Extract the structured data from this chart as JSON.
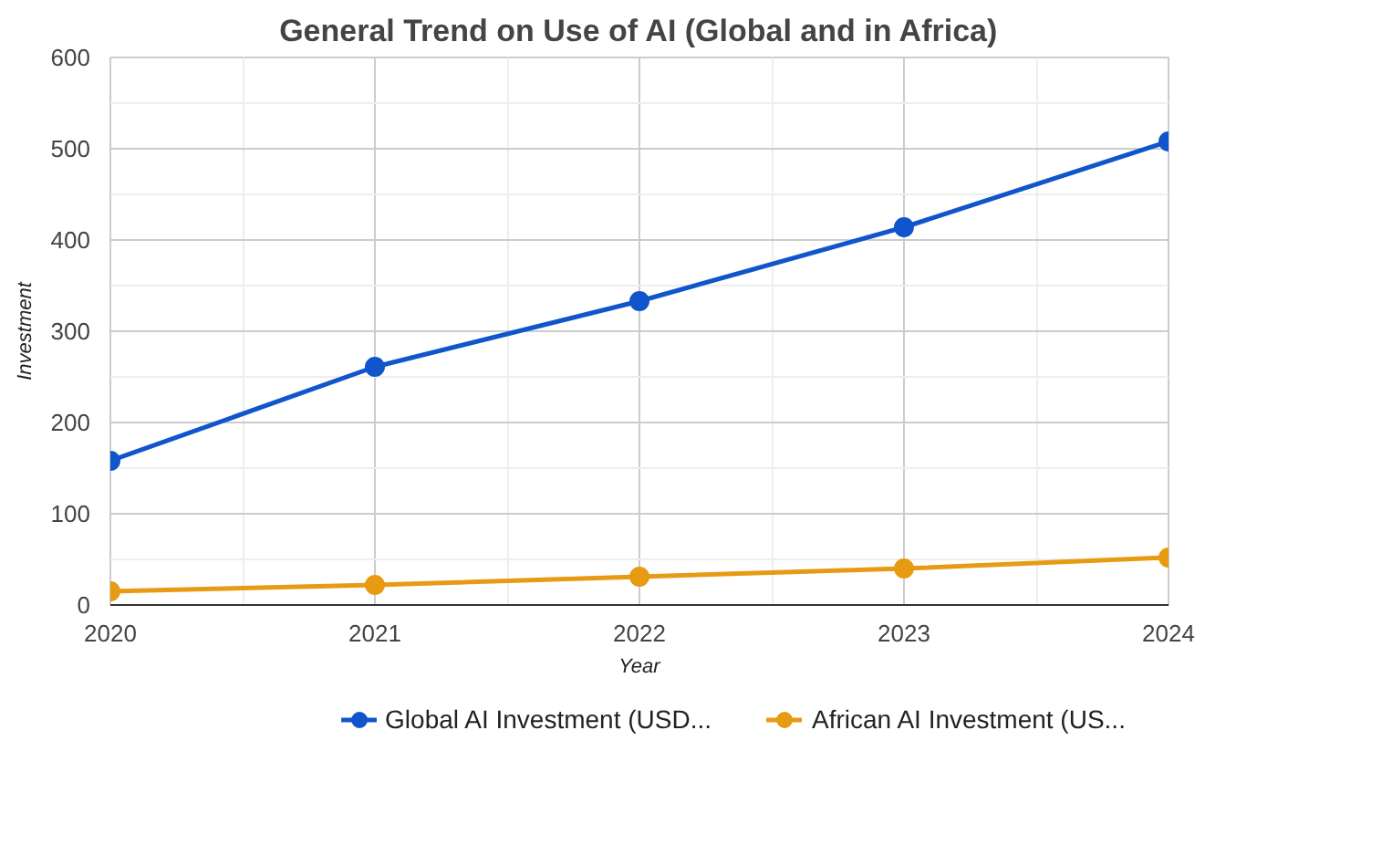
{
  "chart_data": {
    "type": "line",
    "title": "General Trend on Use of AI (Global and in Africa)",
    "xlabel": "Year",
    "ylabel": "Investment",
    "x": [
      2020,
      2021,
      2022,
      2023,
      2024
    ],
    "series": [
      {
        "name": "Global AI Investment (USD...",
        "color": "#1155cc",
        "values": [
          158,
          261,
          333,
          414,
          508
        ]
      },
      {
        "name": "African AI Investment (US...",
        "color": "#e69b13",
        "values": [
          15,
          22,
          31,
          40,
          52
        ]
      }
    ],
    "xlim": [
      2020,
      2024
    ],
    "xticks": [
      2020,
      2021,
      2022,
      2023,
      2024
    ],
    "ylim": [
      0,
      600
    ],
    "yticks": [
      0,
      100,
      200,
      300,
      400,
      500,
      600
    ],
    "grid": true,
    "legend": "bottom",
    "marker": "circle",
    "line_style": "solid"
  }
}
